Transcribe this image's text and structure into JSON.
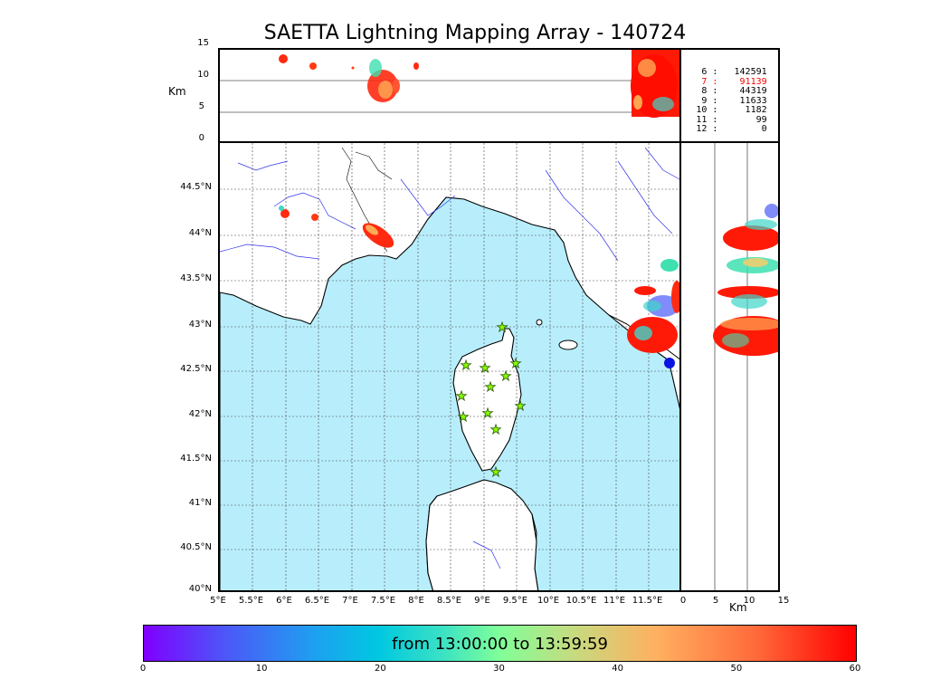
{
  "title": "SAETTA Lightning Mapping Array - 140724",
  "altitude_axis": {
    "label": "Km",
    "ticks": [
      "15",
      "10",
      "5",
      "0"
    ]
  },
  "side_axis": {
    "label": "Km",
    "ticks": [
      "0",
      "5",
      "10",
      "15"
    ]
  },
  "latitude_ticks": [
    "44.5°N",
    "44°N",
    "43.5°N",
    "43°N",
    "42.5°N",
    "42°N",
    "41.5°N",
    "41°N",
    "40.5°N",
    "40°N"
  ],
  "longitude_ticks": [
    "5°E",
    "5.5°E",
    "6°E",
    "6.5°E",
    "7°E",
    "7.5°E",
    "8°E",
    "8.5°E",
    "9°E",
    "9.5°E",
    "10°E",
    "10.5°E",
    "11°E",
    "11.5°E"
  ],
  "station_counts": [
    {
      "stations": "6",
      "count": "142591",
      "highlight": false
    },
    {
      "stations": "7",
      "count": "91139",
      "highlight": true
    },
    {
      "stations": "8",
      "count": "44319",
      "highlight": false
    },
    {
      "stations": "9",
      "count": "11633",
      "highlight": false
    },
    {
      "stations": "10",
      "count": "1182",
      "highlight": false
    },
    {
      "stations": "11",
      "count": "99",
      "highlight": false
    },
    {
      "stations": "12",
      "count": "0",
      "highlight": false
    }
  ],
  "colorbar": {
    "label": "from 13:00:00 to 13:59:59",
    "ticks": [
      "0",
      "10",
      "20",
      "30",
      "40",
      "50",
      "60"
    ],
    "range": [
      0,
      60
    ]
  },
  "colors": {
    "sea": "#b8eefc",
    "highlight": "#ff0000",
    "station": "#88ff00"
  },
  "map_extent": {
    "lon": [
      5,
      12
    ],
    "lat": [
      40,
      45
    ]
  }
}
